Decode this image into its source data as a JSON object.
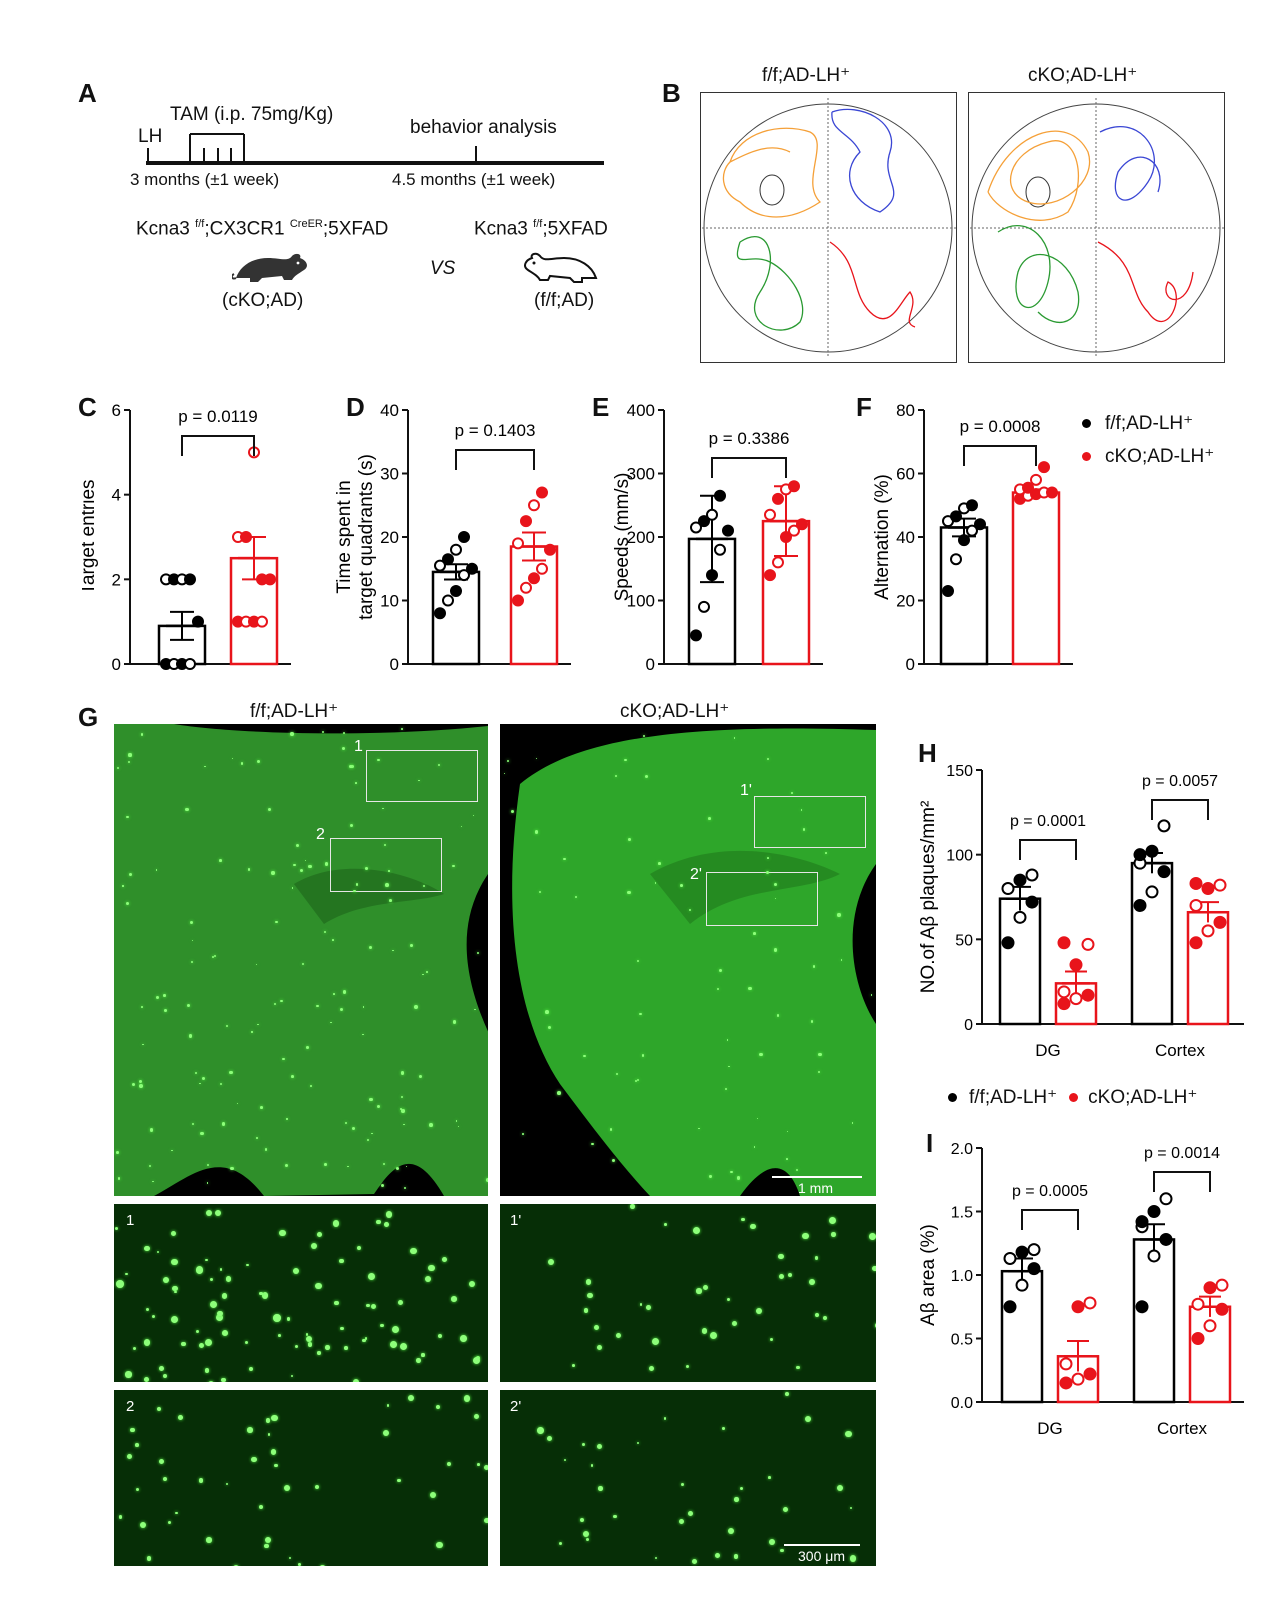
{
  "colors": {
    "ff": "#000000",
    "cko": "#e8141b",
    "fluor": "#1fa11f"
  },
  "panel_labels": {
    "A": "A",
    "B": "B",
    "C": "C",
    "D": "D",
    "E": "E",
    "F": "F",
    "G": "G",
    "H": "H",
    "I": "I"
  },
  "panelA": {
    "tam": "TAM (i.p. 75mg/Kg)",
    "lh": "LH",
    "behavior": "behavior analysis",
    "t1": "3 months (±1 week)",
    "t2": "4.5 months (±1 week)",
    "g1_pre": "Kcna3 ",
    "g1_sup1": "f/f",
    "g1_mid": ";CX3CR1 ",
    "g1_sup2": "CreER",
    "g1_post": ";5XFAD",
    "g1_name": "(cKO;AD)",
    "vs": "VS",
    "g2_pre": "Kcna3 ",
    "g2_sup": "f/f",
    "g2_post": ";5XFAD",
    "g2_name": "(f/f;AD)"
  },
  "panelB": {
    "title1": "f/f;AD-LH⁺",
    "title2": "cKO;AD-LH⁺"
  },
  "legend": {
    "ff": "f/f;AD-LH⁺",
    "cko": "cKO;AD-LH⁺"
  },
  "chart_data": [
    {
      "panel": "C",
      "type": "bar",
      "ylabel": "Target entries",
      "ylim": [
        0,
        6
      ],
      "yticks": [
        0,
        2,
        4,
        6
      ],
      "pvalue": "p = 0.0119",
      "series": [
        {
          "name": "f/f;AD-LH⁺",
          "mean": 0.9,
          "sem": 0.33,
          "points": [
            0,
            0,
            0,
            0,
            1,
            2,
            2,
            2,
            2
          ]
        },
        {
          "name": "cKO;AD-LH⁺",
          "mean": 2.5,
          "sem": 0.5,
          "points": [
            1,
            1,
            1,
            1,
            2,
            3,
            3,
            5,
            2
          ]
        }
      ]
    },
    {
      "panel": "D",
      "type": "bar",
      "ylabel": "Time spent in target quadrants (s)",
      "ylim": [
        0,
        40
      ],
      "yticks": [
        0,
        10,
        20,
        30,
        40
      ],
      "pvalue": "p = 0.1403",
      "series": [
        {
          "name": "f/f;AD-LH⁺",
          "mean": 14.5,
          "sem": 1.2,
          "points": [
            8,
            10,
            11.5,
            14,
            15,
            15.5,
            16.5,
            18,
            20
          ]
        },
        {
          "name": "cKO;AD-LH⁺",
          "mean": 18.5,
          "sem": 2.2,
          "points": [
            10,
            12,
            13.5,
            15,
            18,
            19,
            22.5,
            25,
            27
          ]
        }
      ]
    },
    {
      "panel": "E",
      "type": "bar",
      "ylabel": "Speeds (mm/s)",
      "ylim": [
        0,
        400
      ],
      "yticks": [
        0,
        100,
        200,
        300,
        400
      ],
      "pvalue": "p = 0.3386",
      "series": [
        {
          "name": "f/f;AD-LH⁺",
          "mean": 197,
          "sd": 68,
          "points": [
            45,
            90,
            140,
            180,
            210,
            215,
            225,
            235,
            265
          ]
        },
        {
          "name": "cKO;AD-LH⁺",
          "mean": 225,
          "sd": 55,
          "points": [
            140,
            160,
            200,
            210,
            220,
            235,
            260,
            275,
            280
          ]
        }
      ]
    },
    {
      "panel": "F",
      "type": "bar",
      "ylabel": "Alternation (%)",
      "ylim": [
        0,
        80
      ],
      "yticks": [
        0,
        20,
        40,
        60,
        80
      ],
      "pvalue": "p = 0.0008",
      "series": [
        {
          "name": "f/f;AD-LH⁺",
          "mean": 43,
          "sem": 2.8,
          "points": [
            23,
            33,
            39,
            42,
            44,
            45,
            46.5,
            49,
            50
          ]
        },
        {
          "name": "cKO;AD-LH⁺",
          "mean": 54,
          "sem": 1.0,
          "points": [
            52,
            53,
            53.5,
            54,
            54,
            55,
            55.5,
            58,
            62
          ]
        }
      ]
    },
    {
      "panel": "H",
      "type": "bar",
      "ylabel": "NO.of Aβ plaques/mm²",
      "categories": [
        "DG",
        "Cortex"
      ],
      "ylim": [
        0,
        150
      ],
      "yticks": [
        0,
        50,
        100,
        150
      ],
      "pvalues": [
        "p = 0.0001",
        "p = 0.0057"
      ],
      "series": [
        {
          "name": "f/f;AD-LH⁺",
          "mean": [
            74,
            95
          ],
          "sem": [
            7,
            6
          ],
          "points": [
            [
              48,
              63,
              72,
              80,
              85,
              88
            ],
            [
              70,
              78,
              90,
              95,
              102,
              117,
              100
            ]
          ]
        },
        {
          "name": "cKO;AD-LH⁺",
          "mean": [
            24,
            66
          ],
          "sem": [
            7,
            6
          ],
          "points": [
            [
              12,
              15,
              17,
              19,
              35,
              47,
              48
            ],
            [
              48,
              55,
              60,
              70,
              80,
              82,
              83
            ]
          ]
        }
      ]
    },
    {
      "panel": "I",
      "type": "bar",
      "ylabel": "Aβ area (%)",
      "categories": [
        "DG",
        "Cortex"
      ],
      "ylim": [
        0,
        2.0
      ],
      "yticks": [
        "0.0",
        "0.5",
        "1.0",
        "1.5",
        "2.0"
      ],
      "pvalues": [
        "p = 0.0005",
        "p = 0.0014"
      ],
      "series": [
        {
          "name": "f/f;AD-LH⁺",
          "mean": [
            1.03,
            1.28
          ],
          "sem": [
            0.1,
            0.12
          ],
          "points": [
            [
              0.75,
              0.92,
              1.05,
              1.13,
              1.18,
              1.2
            ],
            [
              0.75,
              1.15,
              1.28,
              1.38,
              1.5,
              1.6,
              1.42
            ]
          ]
        },
        {
          "name": "cKO;AD-LH⁺",
          "mean": [
            0.36,
            0.75
          ],
          "sem": [
            0.12,
            0.08
          ],
          "points": [
            [
              0.15,
              0.18,
              0.22,
              0.3,
              0.75,
              0.78
            ],
            [
              0.5,
              0.6,
              0.73,
              0.77,
              0.9,
              0.92
            ]
          ]
        }
      ]
    }
  ],
  "panelG": {
    "title1": "f/f;AD-LH⁺",
    "title2": "cKO;AD-LH⁺",
    "box1": "1",
    "box2": "2",
    "box1p": "1'",
    "box2p": "2'",
    "scale1": "1 mm",
    "scale2": "300 μm",
    "inset1": "1",
    "inset2": "2",
    "inset1p": "1'",
    "inset2p": "2'"
  }
}
